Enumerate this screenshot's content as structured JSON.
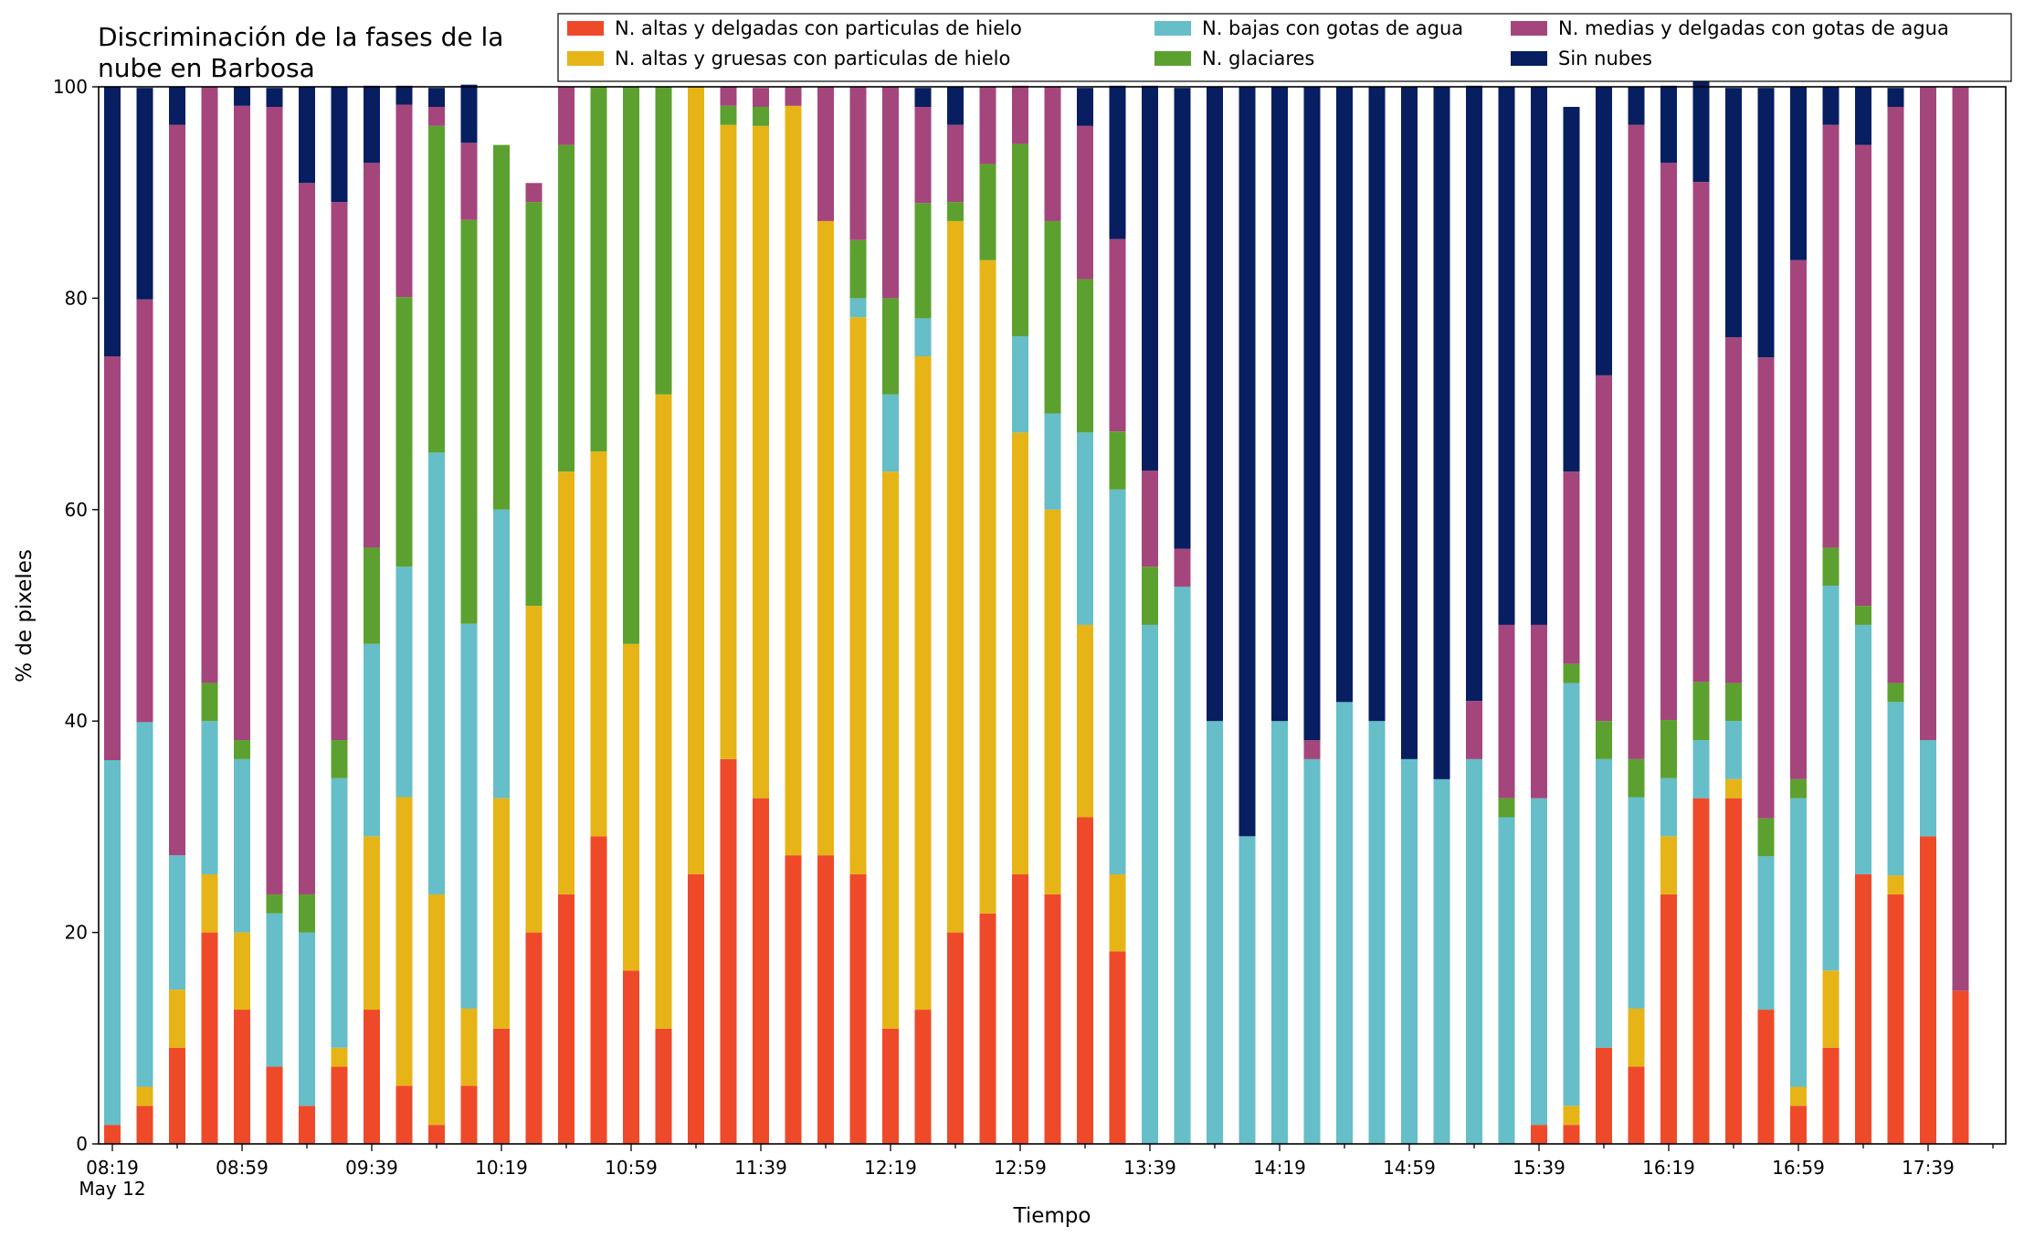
{
  "chart_data": {
    "type": "bar",
    "stacked": true,
    "title_lines": [
      "Discriminación de la fases de la",
      "nube en Barbosa"
    ],
    "xlabel": "Tiempo",
    "ylabel": "% de pixeles",
    "ylim": [
      0,
      100
    ],
    "yticks": [
      0,
      20,
      40,
      60,
      80,
      100
    ],
    "grid": false,
    "legend_position": "top-right",
    "x_tick_labels": [
      "08:19",
      "08:59",
      "09:39",
      "10:19",
      "10:59",
      "11:39",
      "12:19",
      "12:59",
      "13:39",
      "14:19",
      "14:59",
      "15:39",
      "16:19",
      "16:59",
      "17:39"
    ],
    "x_date_label": "May 12",
    "categories": [
      "08:19",
      "08:29",
      "08:39",
      "08:49",
      "08:59",
      "09:09",
      "09:19",
      "09:29",
      "09:39",
      "09:49",
      "09:59",
      "10:09",
      "10:19",
      "10:29",
      "10:39",
      "10:49",
      "10:59",
      "11:09",
      "11:19",
      "11:29",
      "11:39",
      "11:49",
      "11:59",
      "12:09",
      "12:19",
      "12:29",
      "12:39",
      "12:49",
      "12:59",
      "13:09",
      "13:19",
      "13:29",
      "13:39",
      "13:49",
      "13:59",
      "14:09",
      "14:19",
      "14:29",
      "14:39",
      "14:49",
      "14:59",
      "15:09",
      "15:19",
      "15:29",
      "15:39",
      "15:49",
      "15:59",
      "16:09",
      "16:19",
      "16:29",
      "16:39",
      "16:49",
      "16:59",
      "17:09",
      "17:19",
      "17:29",
      "17:39",
      "17:49"
    ],
    "series": [
      {
        "name": "N. altas y delgadas con particulas de hielo",
        "color": "#ee4a2a",
        "values": [
          1.8,
          3.6,
          9.1,
          20.0,
          12.7,
          7.3,
          3.6,
          7.3,
          12.7,
          5.5,
          1.8,
          5.5,
          10.9,
          20.0,
          23.6,
          29.1,
          16.4,
          10.9,
          25.5,
          36.4,
          32.7,
          27.3,
          27.3,
          25.5,
          10.9,
          12.7,
          20.0,
          21.8,
          25.5,
          23.6,
          30.9,
          18.2,
          0,
          0,
          0,
          0,
          0,
          0,
          0,
          0,
          0,
          0,
          0,
          0,
          1.8,
          1.8,
          9.1,
          7.3,
          23.6,
          32.7,
          32.7,
          12.7,
          3.6,
          9.1,
          25.5,
          23.6,
          29.1,
          14.5
        ]
      },
      {
        "name": "N. altas y gruesas con particulas de hielo",
        "color": "#e6b417",
        "values": [
          0,
          1.8,
          5.5,
          5.5,
          7.3,
          0,
          0,
          1.8,
          16.4,
          27.3,
          21.8,
          7.3,
          21.8,
          30.9,
          40.0,
          36.4,
          30.9,
          60.0,
          74.5,
          60.0,
          63.6,
          70.9,
          60.0,
          52.7,
          52.7,
          61.8,
          67.3,
          61.8,
          41.8,
          36.4,
          18.2,
          7.3,
          0,
          0,
          0,
          0,
          0,
          0,
          0,
          0,
          0,
          0,
          0,
          0,
          0,
          1.8,
          0,
          5.5,
          5.5,
          0,
          1.8,
          0,
          1.8,
          7.3,
          0,
          1.8,
          0,
          0
        ]
      },
      {
        "name": "N. bajas con gotas de agua",
        "color": "#65bec8",
        "values": [
          34.5,
          34.5,
          12.7,
          14.5,
          16.4,
          14.5,
          16.4,
          25.5,
          18.2,
          21.8,
          41.8,
          36.4,
          27.3,
          0,
          0,
          0,
          0,
          0,
          0,
          0,
          0,
          0,
          0,
          1.8,
          7.3,
          3.6,
          0,
          0,
          9.1,
          9.1,
          18.2,
          36.4,
          49.1,
          52.7,
          40.0,
          29.1,
          40.0,
          36.4,
          41.8,
          40.0,
          36.4,
          34.5,
          36.4,
          30.9,
          30.9,
          40.0,
          27.3,
          20.0,
          5.5,
          5.5,
          5.5,
          14.5,
          27.3,
          36.4,
          23.6,
          16.4,
          9.1,
          0
        ]
      },
      {
        "name": "N. glaciares",
        "color": "#5ca12f",
        "values": [
          0,
          0,
          0,
          3.6,
          1.8,
          1.8,
          3.6,
          3.6,
          9.1,
          25.5,
          30.9,
          38.2,
          34.5,
          38.2,
          30.9,
          34.5,
          52.7,
          29.1,
          0,
          1.8,
          1.8,
          0,
          0,
          5.5,
          9.1,
          10.9,
          1.8,
          9.1,
          18.2,
          18.2,
          14.5,
          5.5,
          5.5,
          0,
          0,
          0,
          0,
          0,
          0,
          0,
          0,
          0,
          0,
          1.8,
          0,
          1.8,
          3.6,
          3.6,
          5.5,
          5.5,
          3.6,
          3.6,
          1.8,
          3.6,
          1.8,
          1.8,
          0,
          0
        ]
      },
      {
        "name": "N. medias y delgadas con gotas de agua",
        "color": "#a4467c",
        "values": [
          38.2,
          40.0,
          69.1,
          56.4,
          60.0,
          74.5,
          67.3,
          50.9,
          36.4,
          18.2,
          1.8,
          7.3,
          0,
          1.8,
          5.5,
          0,
          0,
          0,
          0,
          1.8,
          1.8,
          1.8,
          12.7,
          14.5,
          20.0,
          9.1,
          7.3,
          7.3,
          5.5,
          12.7,
          14.5,
          18.2,
          9.1,
          3.6,
          0,
          0,
          0,
          1.8,
          0,
          0,
          0,
          0,
          5.5,
          16.4,
          16.4,
          18.2,
          32.7,
          60.0,
          52.7,
          47.3,
          32.7,
          43.6,
          49.1,
          40.0,
          43.6,
          54.5,
          61.8,
          85.5
        ]
      },
      {
        "name": "Sin nubes",
        "color": "#071e60",
        "values": [
          25.5,
          20.0,
          3.6,
          0,
          1.8,
          1.8,
          9.1,
          10.9,
          7.3,
          1.8,
          1.8,
          5.5,
          0,
          0,
          0,
          0,
          0,
          0,
          0,
          0,
          0,
          0,
          0,
          0,
          0,
          1.8,
          3.6,
          0,
          0,
          0,
          3.6,
          14.5,
          36.4,
          43.6,
          60.0,
          70.9,
          60.0,
          61.8,
          58.2,
          60.0,
          63.6,
          65.5,
          58.2,
          50.9,
          50.9,
          34.5,
          27.3,
          3.6,
          7.3,
          14.5,
          23.6,
          25.5,
          16.4,
          3.6,
          5.5,
          1.8,
          0,
          0
        ]
      }
    ]
  }
}
